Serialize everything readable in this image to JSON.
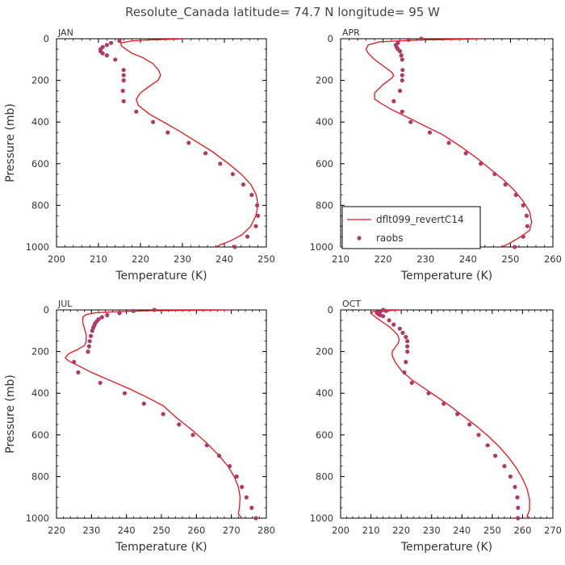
{
  "page": {
    "title": "Resolute_Canada  latitude= 74.7 N longitude= 95 W"
  },
  "colors": {
    "model": "#e8141a",
    "obs": "#b03a64",
    "axis": "#000000",
    "text": "#333333"
  },
  "legend": {
    "model_label": "dflt099_revertC14",
    "obs_label": "raobs"
  },
  "chart_data": [
    {
      "type": "scatter",
      "panel": "JAN",
      "month": "JAN",
      "xlabel": "Temperature (K)",
      "ylabel": "Pressure (mb)",
      "xlim": [
        200,
        250
      ],
      "xticks": [
        200,
        210,
        220,
        230,
        240,
        250
      ],
      "ylim": [
        0,
        1000
      ],
      "yticks": [
        0,
        200,
        400,
        600,
        800,
        1000
      ],
      "y_inverted": true,
      "model_series": {
        "name": "dflt099_revertC14",
        "points": [
          [
            230.5,
            0
          ],
          [
            226,
            3
          ],
          [
            222,
            6
          ],
          [
            218,
            10
          ],
          [
            215.3,
            20
          ],
          [
            215.5,
            35
          ],
          [
            216.5,
            50
          ],
          [
            218,
            70
          ],
          [
            220.5,
            90
          ],
          [
            223,
            120
          ],
          [
            224.3,
            150
          ],
          [
            224.8,
            175
          ],
          [
            224.2,
            200
          ],
          [
            222,
            230
          ],
          [
            220,
            260
          ],
          [
            219,
            290
          ],
          [
            219.5,
            320
          ],
          [
            222,
            360
          ],
          [
            225.5,
            400
          ],
          [
            229,
            440
          ],
          [
            233,
            490
          ],
          [
            237,
            540
          ],
          [
            241,
            600
          ],
          [
            244,
            650
          ],
          [
            246.3,
            700
          ],
          [
            247.6,
            750
          ],
          [
            248,
            800
          ],
          [
            247.5,
            850
          ],
          [
            246.3,
            900
          ],
          [
            244.3,
            940
          ],
          [
            241.5,
            970
          ],
          [
            239,
            990
          ],
          [
            238,
            1000
          ]
        ]
      },
      "obs_series": {
        "name": "raobs",
        "points": [
          [
            215,
            10
          ],
          [
            213,
            20
          ],
          [
            212,
            30
          ],
          [
            211,
            40
          ],
          [
            210.5,
            50
          ],
          [
            210.5,
            60
          ],
          [
            211,
            70
          ],
          [
            212,
            80
          ],
          [
            214,
            100
          ],
          [
            216,
            150
          ],
          [
            216,
            175
          ],
          [
            216,
            200
          ],
          [
            215.8,
            250
          ],
          [
            216,
            300
          ],
          [
            219,
            350
          ],
          [
            223,
            400
          ],
          [
            226.5,
            450
          ],
          [
            231.5,
            500
          ],
          [
            235.5,
            550
          ],
          [
            239,
            600
          ],
          [
            242,
            650
          ],
          [
            244.5,
            700
          ],
          [
            246.5,
            750
          ],
          [
            247.8,
            800
          ],
          [
            248,
            850
          ],
          [
            247.5,
            900
          ],
          [
            245.5,
            950
          ],
          [
            242.5,
            1000
          ]
        ]
      }
    },
    {
      "type": "scatter",
      "panel": "APR",
      "month": "APR",
      "xlabel": "Temperature (K)",
      "ylabel": "",
      "xlim": [
        210,
        260
      ],
      "xticks": [
        210,
        220,
        230,
        240,
        250,
        260
      ],
      "ylim": [
        0,
        1000
      ],
      "yticks": [
        0,
        200,
        400,
        600,
        800,
        1000
      ],
      "y_inverted": true,
      "model_series": {
        "name": "dflt099_revertC14",
        "points": [
          [
            243,
            0
          ],
          [
            236,
            3
          ],
          [
            229,
            6
          ],
          [
            224,
            10
          ],
          [
            219,
            15
          ],
          [
            216.5,
            30
          ],
          [
            216,
            50
          ],
          [
            216.5,
            70
          ],
          [
            218,
            100
          ],
          [
            220,
            130
          ],
          [
            222,
            160
          ],
          [
            222.5,
            175
          ],
          [
            222,
            190
          ],
          [
            220,
            220
          ],
          [
            218,
            260
          ],
          [
            218,
            290
          ],
          [
            219.5,
            310
          ],
          [
            222,
            340
          ],
          [
            226,
            380
          ],
          [
            230,
            420
          ],
          [
            234,
            460
          ],
          [
            238.5,
            520
          ],
          [
            242.5,
            580
          ],
          [
            245.5,
            630
          ],
          [
            248.5,
            680
          ],
          [
            251,
            730
          ],
          [
            253,
            780
          ],
          [
            254.5,
            830
          ],
          [
            255,
            880
          ],
          [
            254.5,
            920
          ],
          [
            252.5,
            950
          ],
          [
            250,
            980
          ],
          [
            248,
            1000
          ]
        ]
      },
      "obs_series": {
        "name": "raobs",
        "points": [
          [
            229,
            0
          ],
          [
            226,
            5
          ],
          [
            223.5,
            20
          ],
          [
            223,
            30
          ],
          [
            223.2,
            40
          ],
          [
            223.5,
            50
          ],
          [
            224,
            60
          ],
          [
            224.3,
            80
          ],
          [
            224.5,
            100
          ],
          [
            224.6,
            150
          ],
          [
            224.5,
            175
          ],
          [
            224.5,
            200
          ],
          [
            224,
            250
          ],
          [
            222.5,
            300
          ],
          [
            224.5,
            350
          ],
          [
            226.5,
            400
          ],
          [
            231,
            450
          ],
          [
            235.5,
            500
          ],
          [
            239.5,
            550
          ],
          [
            243,
            600
          ],
          [
            246.3,
            650
          ],
          [
            248.8,
            700
          ],
          [
            251.3,
            750
          ],
          [
            253,
            800
          ],
          [
            253.8,
            850
          ],
          [
            254,
            900
          ],
          [
            253,
            950
          ],
          [
            251,
            1000
          ]
        ]
      }
    },
    {
      "type": "scatter",
      "panel": "JUL",
      "month": "JUL",
      "xlabel": "Temperature (K)",
      "ylabel": "Pressure (mb)",
      "xlim": [
        220,
        280
      ],
      "xticks": [
        220,
        230,
        240,
        250,
        260,
        270,
        280
      ],
      "ylim": [
        0,
        1000
      ],
      "yticks": [
        0,
        200,
        400,
        600,
        800,
        1000
      ],
      "y_inverted": true,
      "model_series": {
        "name": "dflt099_revertC14",
        "points": [
          [
            270,
            0
          ],
          [
            258,
            2
          ],
          [
            246,
            4
          ],
          [
            237,
            8
          ],
          [
            231,
            14
          ],
          [
            228.5,
            22
          ],
          [
            227.5,
            35
          ],
          [
            227.5,
            60
          ],
          [
            228,
            90
          ],
          [
            228.5,
            120
          ],
          [
            228.5,
            150
          ],
          [
            228,
            170
          ],
          [
            226,
            190
          ],
          [
            223.5,
            210
          ],
          [
            222.5,
            230
          ],
          [
            223.5,
            245
          ],
          [
            226,
            265
          ],
          [
            230,
            300
          ],
          [
            235.5,
            340
          ],
          [
            241,
            380
          ],
          [
            246,
            420
          ],
          [
            250.5,
            460
          ],
          [
            254.5,
            520
          ],
          [
            259,
            580
          ],
          [
            263,
            640
          ],
          [
            266.5,
            700
          ],
          [
            269,
            750
          ],
          [
            270.8,
            800
          ],
          [
            272,
            850
          ],
          [
            272.5,
            900
          ],
          [
            272.3,
            950
          ],
          [
            272,
            980
          ],
          [
            273,
            1000
          ]
        ]
      },
      "obs_series": {
        "name": "raobs",
        "points": [
          [
            248,
            0
          ],
          [
            242,
            5
          ],
          [
            238,
            15
          ],
          [
            234.5,
            25
          ],
          [
            233,
            35
          ],
          [
            232,
            45
          ],
          [
            231.5,
            55
          ],
          [
            231,
            65
          ],
          [
            230.8,
            75
          ],
          [
            230.5,
            85
          ],
          [
            230.2,
            100
          ],
          [
            229.8,
            125
          ],
          [
            229.5,
            150
          ],
          [
            229.3,
            175
          ],
          [
            229,
            200
          ],
          [
            225,
            250
          ],
          [
            226.2,
            300
          ],
          [
            232.5,
            350
          ],
          [
            239.5,
            400
          ],
          [
            245,
            450
          ],
          [
            250.5,
            500
          ],
          [
            255,
            550
          ],
          [
            259,
            600
          ],
          [
            263,
            650
          ],
          [
            266.5,
            700
          ],
          [
            269.5,
            750
          ],
          [
            271.5,
            800
          ],
          [
            273,
            850
          ],
          [
            274.3,
            900
          ],
          [
            275.8,
            950
          ],
          [
            277,
            1000
          ]
        ]
      }
    },
    {
      "type": "scatter",
      "panel": "OCT",
      "month": "OCT",
      "xlabel": "Temperature (K)",
      "ylabel": "",
      "xlim": [
        200,
        270
      ],
      "xticks": [
        200,
        210,
        220,
        230,
        240,
        250,
        260,
        270
      ],
      "ylim": [
        0,
        1000
      ],
      "yticks": [
        0,
        200,
        400,
        600,
        800,
        1000
      ],
      "y_inverted": true,
      "model_series": {
        "name": "dflt099_revertC14",
        "points": [
          [
            220,
            0
          ],
          [
            215,
            3
          ],
          [
            211,
            7
          ],
          [
            210,
            12
          ],
          [
            210.5,
            22
          ],
          [
            212,
            40
          ],
          [
            214,
            60
          ],
          [
            216,
            80
          ],
          [
            217.5,
            100
          ],
          [
            218.8,
            120
          ],
          [
            219.3,
            140
          ],
          [
            219,
            160
          ],
          [
            218,
            180
          ],
          [
            217,
            200
          ],
          [
            217,
            220
          ],
          [
            218,
            250
          ],
          [
            220,
            290
          ],
          [
            223,
            330
          ],
          [
            227,
            370
          ],
          [
            231,
            410
          ],
          [
            236,
            460
          ],
          [
            240.5,
            510
          ],
          [
            245,
            560
          ],
          [
            249,
            610
          ],
          [
            252.5,
            660
          ],
          [
            255.5,
            710
          ],
          [
            258,
            760
          ],
          [
            260,
            810
          ],
          [
            261.5,
            860
          ],
          [
            262.3,
            910
          ],
          [
            262.3,
            960
          ],
          [
            261.5,
            990
          ],
          [
            262,
            1000
          ]
        ]
      },
      "obs_series": {
        "name": "raobs",
        "points": [
          [
            214,
            0
          ],
          [
            215,
            5
          ],
          [
            213,
            10
          ],
          [
            212,
            15
          ],
          [
            212.5,
            20
          ],
          [
            213,
            25
          ],
          [
            214,
            30
          ],
          [
            216,
            50
          ],
          [
            217.5,
            70
          ],
          [
            219.5,
            90
          ],
          [
            220.5,
            110
          ],
          [
            221.5,
            130
          ],
          [
            222,
            150
          ],
          [
            222,
            175
          ],
          [
            222,
            200
          ],
          [
            221.5,
            250
          ],
          [
            221,
            300
          ],
          [
            223.5,
            350
          ],
          [
            229,
            400
          ],
          [
            234,
            450
          ],
          [
            238.5,
            500
          ],
          [
            242.5,
            550
          ],
          [
            245.5,
            600
          ],
          [
            248.5,
            650
          ],
          [
            251,
            700
          ],
          [
            254,
            750
          ],
          [
            256,
            800
          ],
          [
            257.5,
            850
          ],
          [
            258.3,
            900
          ],
          [
            258.5,
            950
          ],
          [
            258.5,
            1000
          ]
        ]
      }
    }
  ]
}
